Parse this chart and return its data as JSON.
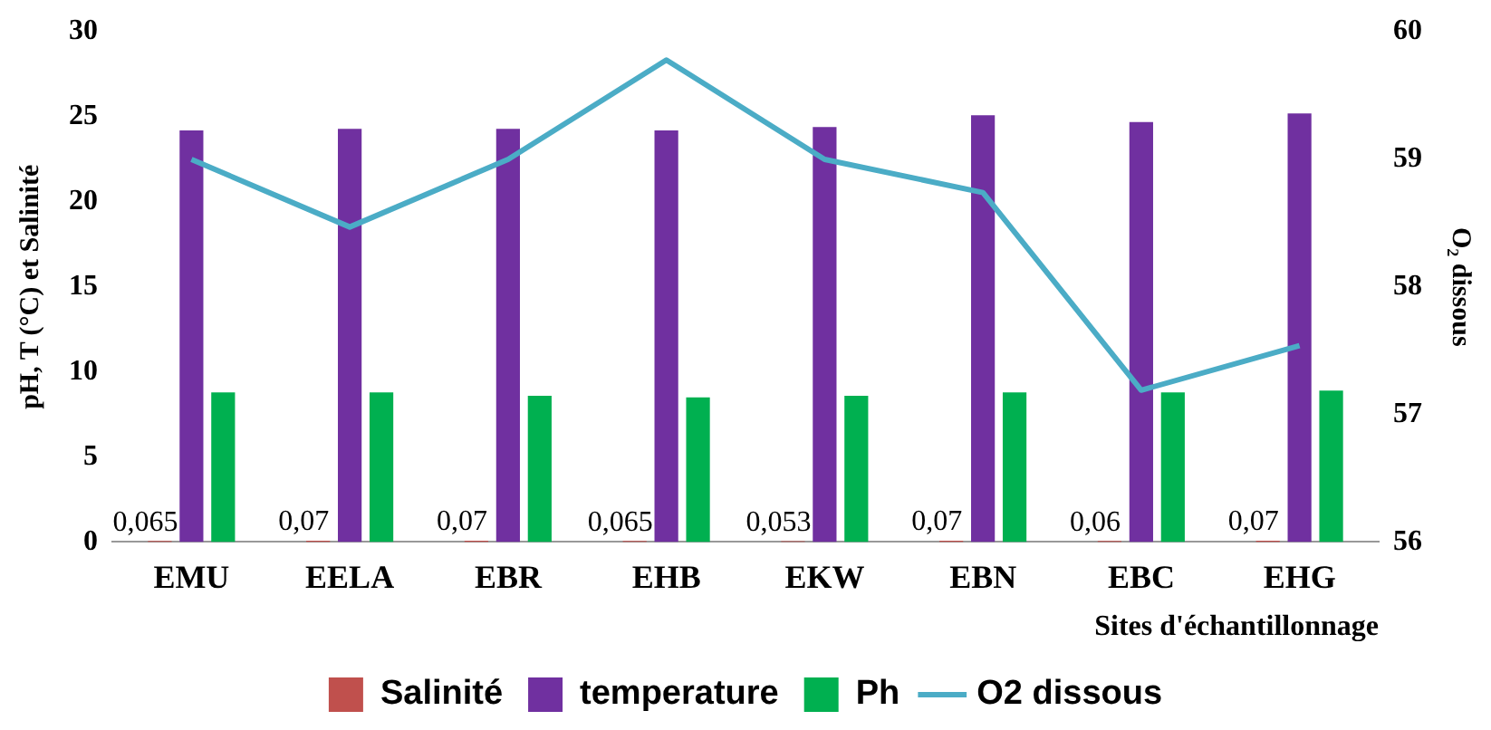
{
  "chart_data": {
    "type": "bar",
    "xlabel": "Sites d'échantillonnage",
    "ylabel": "pH, T (°C) et Salinité",
    "y2label": "O₂ dissous",
    "categories": [
      "EMU",
      "EELA",
      "EBR",
      "EHB",
      "EKW",
      "EBN",
      "EBC",
      "EHG"
    ],
    "series": [
      {
        "name": "Salinité",
        "color": "#c0504d",
        "values": [
          0.065,
          0.07,
          0.07,
          0.065,
          0.053,
          0.07,
          0.06,
          0.07
        ],
        "value_labels": [
          "0,065",
          "0,07",
          "0,07",
          "0,065",
          "0,053",
          "0,07",
          "0,06",
          "0,07"
        ]
      },
      {
        "name": "temperature",
        "color": "#7030a0",
        "values": [
          24.2,
          24.3,
          24.3,
          24.2,
          24.4,
          25.1,
          24.7,
          25.2
        ]
      },
      {
        "name": "Ph",
        "color": "#00b050",
        "values": [
          8.8,
          8.8,
          8.6,
          8.5,
          8.6,
          8.8,
          8.8,
          8.9
        ]
      },
      {
        "name": "O2 dissous",
        "type": "line",
        "axis": "y2",
        "color": "#4bacc6",
        "values": [
          59.0,
          58.47,
          59.0,
          59.78,
          59.0,
          58.74,
          57.19,
          57.54
        ]
      }
    ],
    "ylim": [
      0,
      30
    ],
    "yticks": [
      0,
      5,
      10,
      15,
      20,
      25,
      30
    ],
    "y2lim": [
      56,
      60
    ],
    "y2ticks": [
      56,
      57,
      58,
      59,
      60
    ],
    "grid": false,
    "legend": "bottom",
    "marker": "none"
  }
}
